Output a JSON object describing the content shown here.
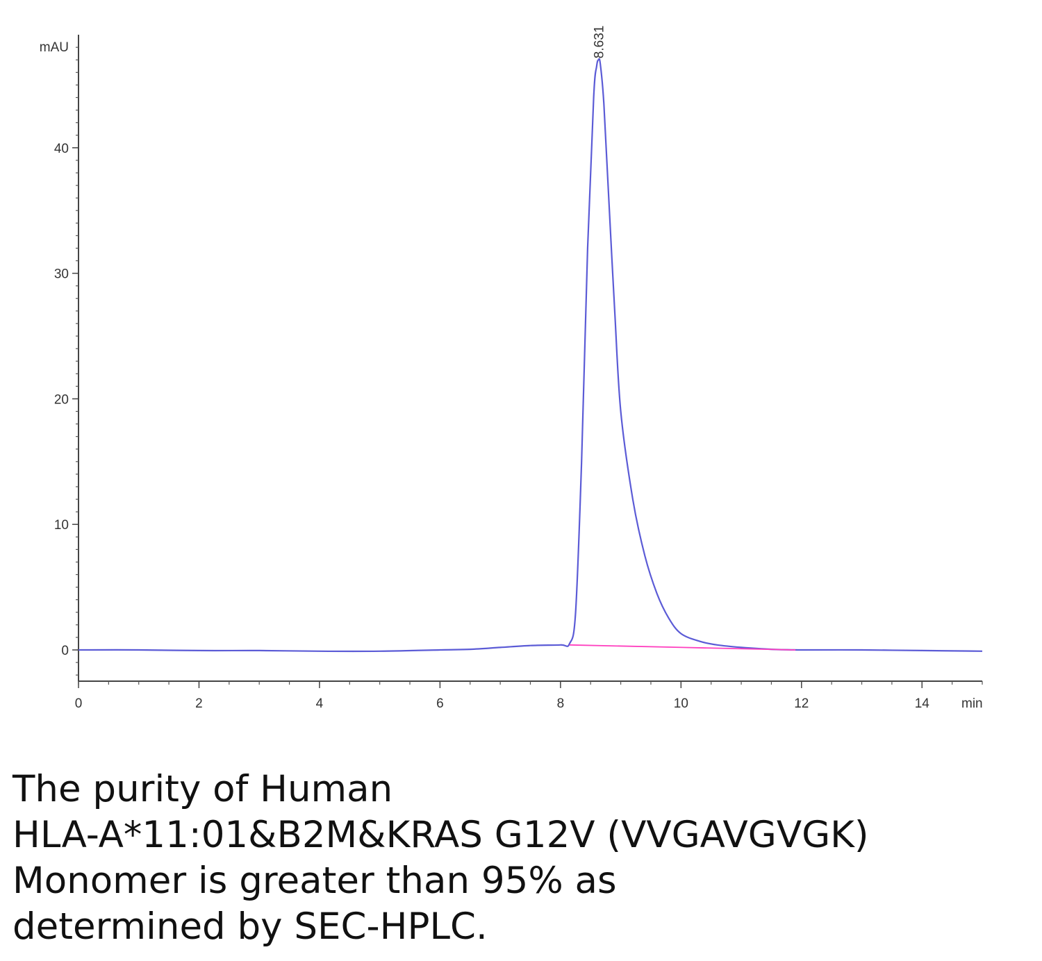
{
  "chart_data": {
    "type": "line",
    "xlabel": "min",
    "ylabel": "mAU",
    "xlim": [
      0,
      15
    ],
    "ylim": [
      -2.5,
      48
    ],
    "x_ticks": [
      "0",
      "2",
      "4",
      "6",
      "8",
      "10",
      "12",
      "14"
    ],
    "y_ticks": [
      "0",
      "10",
      "20",
      "30",
      "40"
    ],
    "grid": false,
    "legend": "none",
    "series": [
      {
        "color": "#5b5bd6",
        "x": [
          0,
          1,
          2,
          3,
          4,
          5,
          6,
          6.5,
          7,
          7.5,
          8.0,
          8.15,
          8.25,
          8.35,
          8.45,
          8.55,
          8.6,
          8.63,
          8.66,
          8.72,
          8.8,
          8.9,
          9.0,
          9.2,
          9.4,
          9.6,
          9.8,
          10.0,
          10.3,
          10.6,
          11.0,
          11.5,
          12.0,
          13.0,
          14.0,
          15.0
        ],
        "y": [
          0.0,
          0.0,
          -0.05,
          -0.05,
          -0.1,
          -0.1,
          0.0,
          0.05,
          0.2,
          0.35,
          0.4,
          0.5,
          3.0,
          15.0,
          32.0,
          44.0,
          46.5,
          47.0,
          46.7,
          43.5,
          36.0,
          27.0,
          19.0,
          12.0,
          7.5,
          4.5,
          2.5,
          1.3,
          0.7,
          0.4,
          0.2,
          0.05,
          0.0,
          0.0,
          -0.05,
          -0.1
        ]
      },
      {
        "color": "#ff3fbf",
        "x": [
          8.15,
          11.9
        ],
        "y": [
          0.4,
          0.0
        ]
      }
    ],
    "annotations": [
      {
        "text": "8.631",
        "x": 8.631,
        "y": 47.0
      }
    ]
  },
  "caption": {
    "lines": [
      "The purity of Human",
      "HLA-A*11:01&B2M&KRAS G12V (VVGAVGVGK)",
      "Monomer is greater than 95% as",
      "determined by SEC-HPLC."
    ]
  }
}
